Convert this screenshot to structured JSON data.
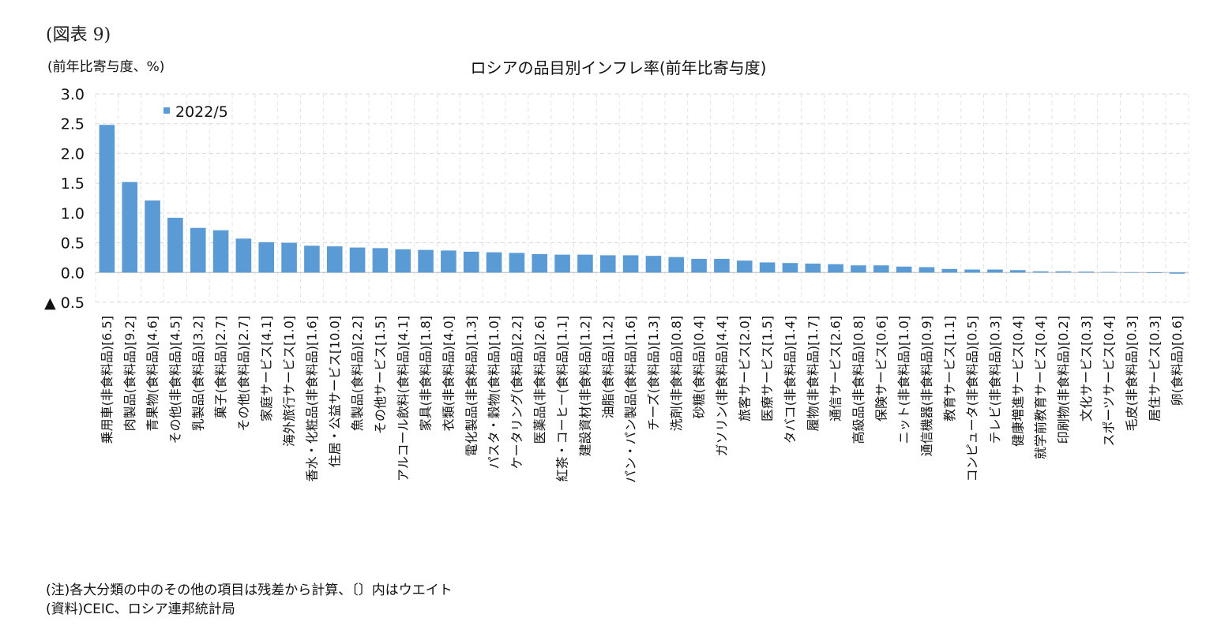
{
  "figure_label": "(図表 9)",
  "chart_data": {
    "type": "bar",
    "title": "ロシアの品目別インフレ率(前年比寄与度)",
    "ylabel": "(前年比寄与度、%)",
    "xlabel": "",
    "ylim": [
      -0.5,
      3.0
    ],
    "yticks": [
      {
        "value": 3.0,
        "label": "3.0"
      },
      {
        "value": 2.5,
        "label": "2.5"
      },
      {
        "value": 2.0,
        "label": "2.0"
      },
      {
        "value": 1.5,
        "label": "1.5"
      },
      {
        "value": 1.0,
        "label": "1.0"
      },
      {
        "value": 0.5,
        "label": "0.5"
      },
      {
        "value": 0.0,
        "label": "0.0"
      },
      {
        "value": -0.5,
        "label": "▲ 0.5"
      }
    ],
    "grid": true,
    "legend_position": "top-left",
    "bar_color": "#5b9bd5",
    "categories": [
      "乗用車(非食料品)[6.5]",
      "肉製品(食料品)[9.2]",
      "青果物(食料品)[4.6]",
      "その他(非食料品)[4.5]",
      "乳製品(食料品)[3.2]",
      "菓子(食料品)[2.7]",
      "その他(食料品)[2.7]",
      "家庭サービス[4.1]",
      "海外旅行サービス[1.0]",
      "香水・化粧品(非食料品)[1.6]",
      "住居・公益サービス[10.0]",
      "魚製品(食料品)[2.2]",
      "その他サービス[1.5]",
      "アルコール飲料(食料品)[4.1]",
      "家具(非食料品)[1.8]",
      "衣類(非食料品)[4.0]",
      "電化製品(非食料品)[1.3]",
      "パスタ・穀物(食料品)[1.0]",
      "ケータリング(食料品)[2.2]",
      "医薬品(非食料品)[2.6]",
      "紅茶・コーヒー(食料品)[1.1]",
      "建設資材(非食料品)[1.2]",
      "油脂(食料品)[1.2]",
      "パン・パン製品(食料品)[1.6]",
      "チーズ(食料品)[1.3]",
      "洗剤(非食料品)[0.8]",
      "砂糖(食料品)[0.4]",
      "ガソリン(非食料品)[4.4]",
      "旅客サービス[2.0]",
      "医療サービス[1.5]",
      "タバコ(非食料品)[1.4]",
      "履物(非食料品)[1.7]",
      "通信サービス[2.6]",
      "高級品(非食料品)[0.8]",
      "保険サービス[0.6]",
      "ニット(非食料品)[1.0]",
      "通信機器(非食料品)[0.9]",
      "教育サービス[1.1]",
      "コンピュータ(非食料品)[0.5]",
      "テレビ(非食料品)[0.3]",
      "健康増進サービス[0.4]",
      "就学前教育サービス[0.4]",
      "印刷物(非食料品)[0.2]",
      "文化サービス[0.3]",
      "スポーツサービス[0.4]",
      "毛皮(非食料品)[0.3]",
      "居住サービス[0.3]",
      "卵(食料品)[0.6]"
    ],
    "series": [
      {
        "name": "2022/5",
        "values": [
          2.48,
          1.52,
          1.21,
          0.92,
          0.75,
          0.71,
          0.57,
          0.51,
          0.5,
          0.45,
          0.44,
          0.42,
          0.41,
          0.39,
          0.38,
          0.37,
          0.35,
          0.34,
          0.33,
          0.31,
          0.3,
          0.3,
          0.29,
          0.29,
          0.28,
          0.26,
          0.23,
          0.23,
          0.2,
          0.17,
          0.16,
          0.15,
          0.14,
          0.12,
          0.12,
          0.1,
          0.09,
          0.06,
          0.05,
          0.05,
          0.04,
          0.02,
          0.02,
          0.015,
          0.01,
          0.005,
          -0.01,
          -0.02
        ]
      }
    ]
  },
  "notes": [
    "(注)各大分類の中のその他の項目は残差から計算、〔〕内はウエイト",
    "(資料)CEIC、ロシア連邦統計局"
  ]
}
